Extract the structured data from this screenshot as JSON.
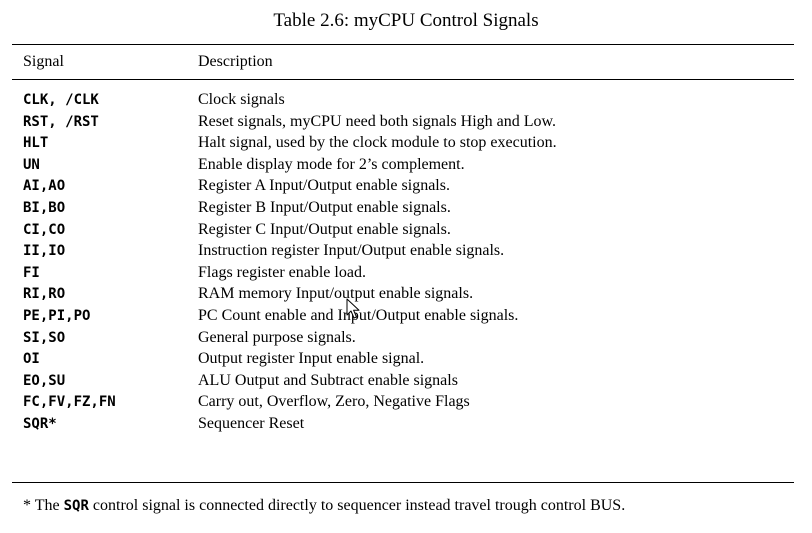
{
  "caption": "Table 2.6: myCPU Control Signals",
  "header": {
    "signal": "Signal",
    "description": "Description"
  },
  "rows": [
    {
      "signal": "CLK, /CLK",
      "description": "Clock signals"
    },
    {
      "signal": "RST, /RST",
      "description": "Reset signals, myCPU need both signals High and Low."
    },
    {
      "signal": "HLT",
      "description": "Halt signal, used by the clock module to stop execution."
    },
    {
      "signal": "UN",
      "description": "Enable display mode for 2’s complement."
    },
    {
      "signal": "AI,AO",
      "description": "Register A Input/Output enable signals."
    },
    {
      "signal": "BI,BO",
      "description": "Register B Input/Output enable signals."
    },
    {
      "signal": "CI,CO",
      "description": "Register C Input/Output enable signals."
    },
    {
      "signal": "II,IO",
      "description": "Instruction register Input/Output enable signals."
    },
    {
      "signal": "FI",
      "description": "Flags register enable load."
    },
    {
      "signal": "RI,RO",
      "description": "RAM memory Input/output enable signals."
    },
    {
      "signal": "PE,PI,PO",
      "description": "PC Count enable and Input/Output enable signals."
    },
    {
      "signal": "SI,SO",
      "description": "General purpose signals."
    },
    {
      "signal": "OI",
      "description": "Output register Input enable signal."
    },
    {
      "signal": "EO,SU",
      "description": "ALU Output and Subtract enable signals"
    },
    {
      "signal": "FC,FV,FZ,FN",
      "description": "Carry out, Overflow, Zero, Negative Flags"
    },
    {
      "signal": "SQR*",
      "description": "Sequencer Reset"
    }
  ],
  "footnote": {
    "prefix": "* The ",
    "code": "SQR",
    "suffix": " control signal is connected directly to sequencer instead travel trough control BUS."
  },
  "cursor_icon": "mouse-pointer-icon"
}
